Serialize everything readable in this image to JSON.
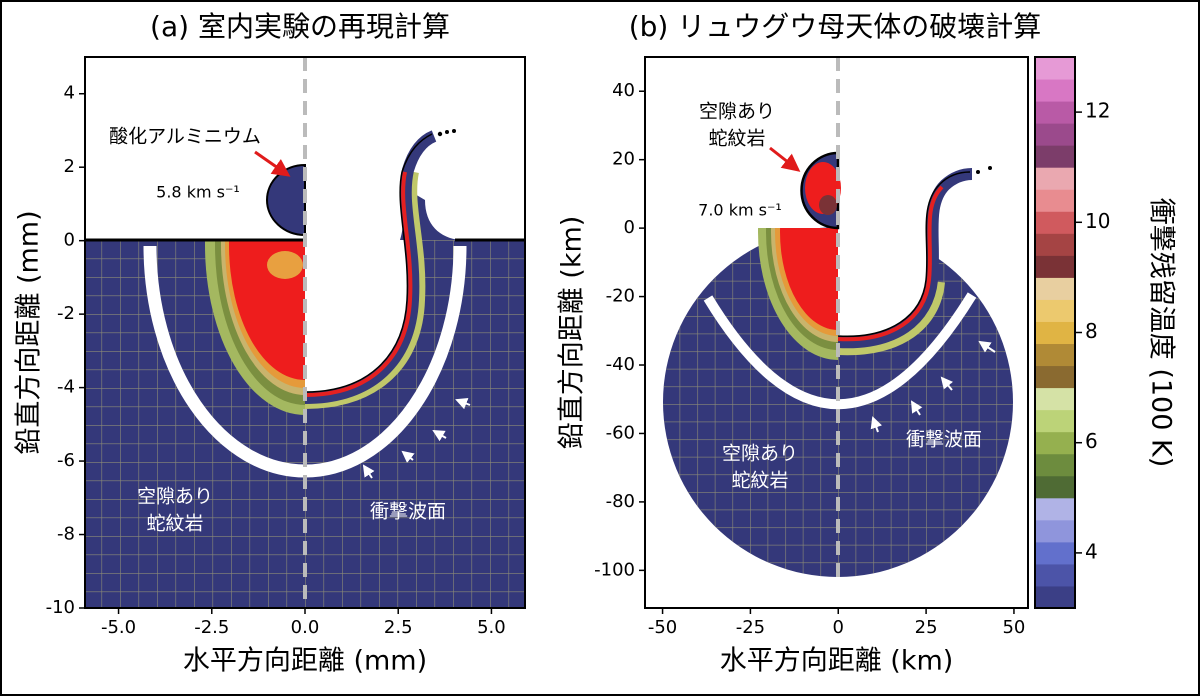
{
  "panels": [
    {
      "title": "(a) 室内実験の再現計算",
      "x_label": "水平方向距離 (mm)",
      "y_label": "鉛直方向距離 (mm)",
      "xlim": [
        -5.9,
        5.9
      ],
      "ylim": [
        -10,
        5
      ],
      "xticks": [
        {
          "value": -5,
          "label": "-5.0"
        },
        {
          "value": -2.5,
          "label": "-2.5"
        },
        {
          "value": 0,
          "label": "0.0"
        },
        {
          "value": 2.5,
          "label": "2.5"
        },
        {
          "value": 5,
          "label": "5.0"
        }
      ],
      "yticks": [
        4,
        2,
        0,
        -2,
        -4,
        -6,
        -8,
        -10
      ],
      "annotations": {
        "impactor": "酸化アルミニウム",
        "velocity": "5.8 km s⁻¹",
        "target": [
          "空隙あり",
          "蛇紋岩"
        ],
        "shock_front": "衝撃波面"
      }
    },
    {
      "title": "(b) リュウグウ母天体の破壊計算",
      "x_label": "水平方向距離 (km)",
      "y_label": "鉛直方向距離 (km)",
      "xlim": [
        -55,
        54
      ],
      "ylim": [
        -111,
        50
      ],
      "xticks": [
        -50,
        -25,
        0,
        25,
        50
      ],
      "yticks": [
        40,
        20,
        0,
        -20,
        -40,
        -60,
        -80,
        -100
      ],
      "annotations": {
        "impactor": [
          "空隙あり",
          "蛇紋岩"
        ],
        "velocity": "7.0 km s⁻¹",
        "target": [
          "空隙あり",
          "蛇紋岩"
        ],
        "shock_front": "衝撃波面"
      }
    }
  ],
  "colorbar": {
    "label": "衝撃残留温度 (100 K)",
    "lim": [
      3,
      13
    ],
    "ticks": [
      4,
      6,
      8,
      10,
      12
    ],
    "colors": [
      "#3b3f86",
      "#4c54a8",
      "#6270cc",
      "#8f95dc",
      "#b0b3e6",
      "#4f6b34",
      "#6d8c3e",
      "#95b04f",
      "#bcd378",
      "#d5e2a6",
      "#8a6a30",
      "#b08a36",
      "#e0b444",
      "#ecc96e",
      "#e8cfa0",
      "#7a3236",
      "#a54444",
      "#d05a5e",
      "#e88c90",
      "#eaa8b0",
      "#7c3d6a",
      "#9b4a8c",
      "#b95aa6",
      "#d877c4",
      "#e69ad6"
    ]
  }
}
